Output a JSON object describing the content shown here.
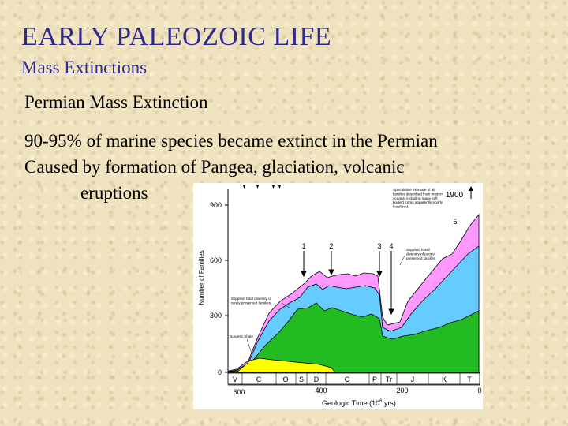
{
  "slide": {
    "title": "EARLY PALEOZOIC LIFE",
    "subtitle": "Mass Extinctions",
    "heading": "Permian Mass Extinction",
    "line1": "90-95% of marine species became extinct in the Permian",
    "line2": "Caused by formation of Pangea, glaciation, volcanic",
    "line3": "eruptions"
  },
  "figure": {
    "ylabel": "Number of Families",
    "xlabel": "Geologic Time (10",
    "xlabel_sup": "6",
    "xlabel_end": " yrs)",
    "yticks": [
      "0",
      "300",
      "600",
      "900"
    ],
    "xticks": [
      "600",
      "400",
      "200",
      "0"
    ],
    "periods": [
      "V",
      "Є",
      "O",
      "S",
      "D",
      "C",
      "P",
      "Tr",
      "J",
      "K",
      "T"
    ],
    "extinction_markers": [
      "1",
      "2",
      "3",
      "4",
      "5"
    ],
    "value_label": "1900",
    "annotations": {
      "top": [
        "Speculative estimate of all",
        "families described from modern",
        "oceans, including many soft",
        "bodied forms apparently poorly",
        "fossilized."
      ],
      "right": [
        "Stippled: fossil",
        "diversity of poorly",
        "preserved families"
      ],
      "left": [
        "Stippled: total diversity of",
        "rarely preserved families"
      ],
      "burgess": "Burgess Shale"
    },
    "colors": {
      "yellow": "#ffff00",
      "green": "#22bb22",
      "blue": "#66ccff",
      "pink": "#ff99ff"
    }
  }
}
